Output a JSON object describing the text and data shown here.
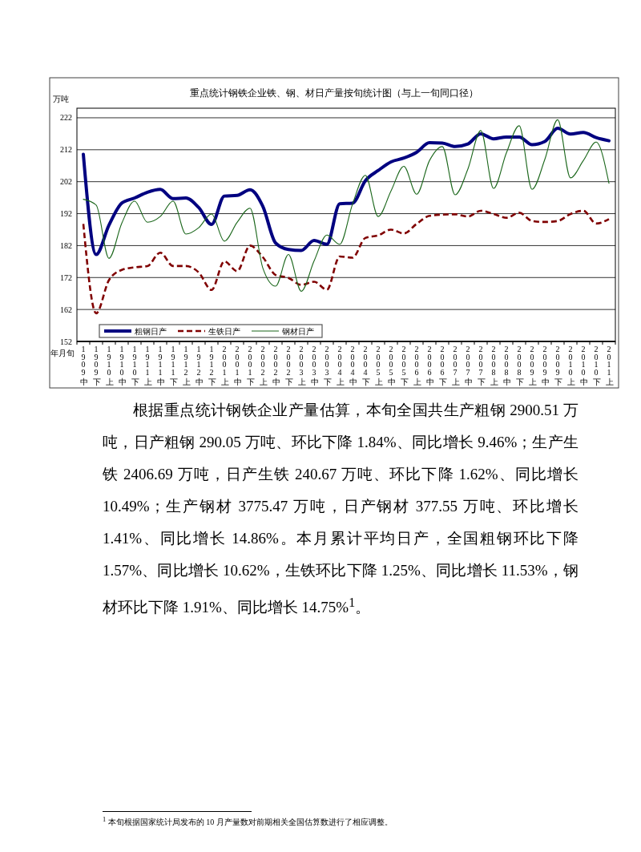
{
  "chart_data": {
    "type": "line",
    "title": "重点统计钢铁企业铁、钢、材日产量按旬统计图（与上一旬同口径）",
    "ylabel": "万吨",
    "xlabel": "年月旬",
    "categories": [
      "1909 中",
      "1909 下",
      "1910 上",
      "1910 中",
      "1910 下",
      "1911 上",
      "1911 中",
      "1911 下",
      "1912 上",
      "1912 中",
      "1912 下",
      "2001 上",
      "2001 中",
      "2001 下",
      "2002 上",
      "2002 中",
      "2002 下",
      "2003 上",
      "2003 中",
      "2003 下",
      "2004 上",
      "2004 中",
      "2004 下",
      "2005 上",
      "2005 中",
      "2005 下",
      "2006 上",
      "2006 中",
      "2006 下",
      "2007 上",
      "2007 中",
      "2007 下",
      "2008 上",
      "2008 中",
      "2008 下",
      "2009 上",
      "2009 中",
      "2009 下",
      "2010 上",
      "2010 中",
      "2010 下",
      "2011 上"
    ],
    "series": [
      {
        "name": "粗钢日产",
        "color": "#000080",
        "line_style": "solid",
        "values": [
          210.6,
          179.2,
          188.4,
          195.3,
          196.9,
          198.7,
          199.6,
          196.7,
          196.9,
          193.9,
          188.6,
          197.5,
          197.7,
          199.5,
          194.3,
          182.8,
          180.8,
          180.5,
          183.6,
          182.4,
          195.1,
          195.3,
          202.3,
          205.5,
          208.2,
          209.4,
          211.2,
          214.2,
          214.1,
          213.0,
          213.8,
          217.0,
          215.4,
          216.0,
          216.0,
          213.6,
          214.6,
          218.7,
          216.9,
          217.4,
          215.8,
          214.8
        ]
      },
      {
        "name": "生铁日产",
        "color": "#800000",
        "line_style": "dashed",
        "values": [
          188.8,
          160.8,
          171.2,
          174.4,
          175.2,
          175.6,
          179.8,
          175.6,
          175.6,
          173.6,
          168.1,
          177.1,
          174.0,
          182.0,
          178.4,
          172.8,
          171.9,
          169.7,
          170.7,
          168.2,
          178.6,
          178.2,
          184.4,
          185.2,
          187.0,
          185.8,
          188.8,
          191.3,
          191.7,
          191.8,
          191.1,
          192.9,
          191.9,
          190.7,
          192.3,
          189.7,
          189.4,
          189.7,
          191.9,
          192.9,
          188.9,
          190.3
        ]
      },
      {
        "name": "钢材日产",
        "color": "#1a661a",
        "line_style": "solid",
        "values": [
          196.5,
          194.7,
          178.0,
          189.0,
          195.9,
          189.3,
          191.1,
          195.9,
          185.6,
          187.6,
          191.9,
          183.4,
          189.3,
          193.7,
          175.0,
          169.3,
          179.2,
          167.7,
          177.2,
          185.3,
          182.4,
          195.0,
          204.0,
          191.1,
          199.1,
          206.8,
          198.1,
          208.6,
          213.0,
          197.9,
          206.0,
          218.0,
          199.9,
          211.0,
          219.5,
          199.6,
          209.0,
          221.4,
          203.2,
          208.6,
          214.4,
          201.5
        ]
      }
    ],
    "ylim": [
      152,
      225
    ],
    "yticks": [
      152,
      162,
      172,
      182,
      192,
      202,
      212,
      222
    ],
    "grid": "y",
    "legend": "bottom left",
    "annotations": [
      "根据重点统计钢铁企业产量估算，本旬全国共生产粗钢 2900.51 万吨，日产粗钢 290.05 万吨、环比下降 1.84%、同比增长 9.46%；生产生铁 2406.69 万吨，日产生铁 240.67 万吨、环比下降 1.62%、同比增长 10.49%；生产钢材 3775.47 万吨，日产钢材 377.55 万吨、环比增长 1.41%、同比增长 14.86%。本月累计平均日产，全国粗钢环比下降 1.57%、同比增长 10.62%，生铁环比下降 1.25%、同比增长 11.53%，钢材环比下降 1.91%、同比增长 14.75%$^{1}$。",
      "$^{1}$ 本旬根据国家统计局发布的 10 月产量数对前期相关全国估算数进行了相应调整。"
    ]
  }
}
